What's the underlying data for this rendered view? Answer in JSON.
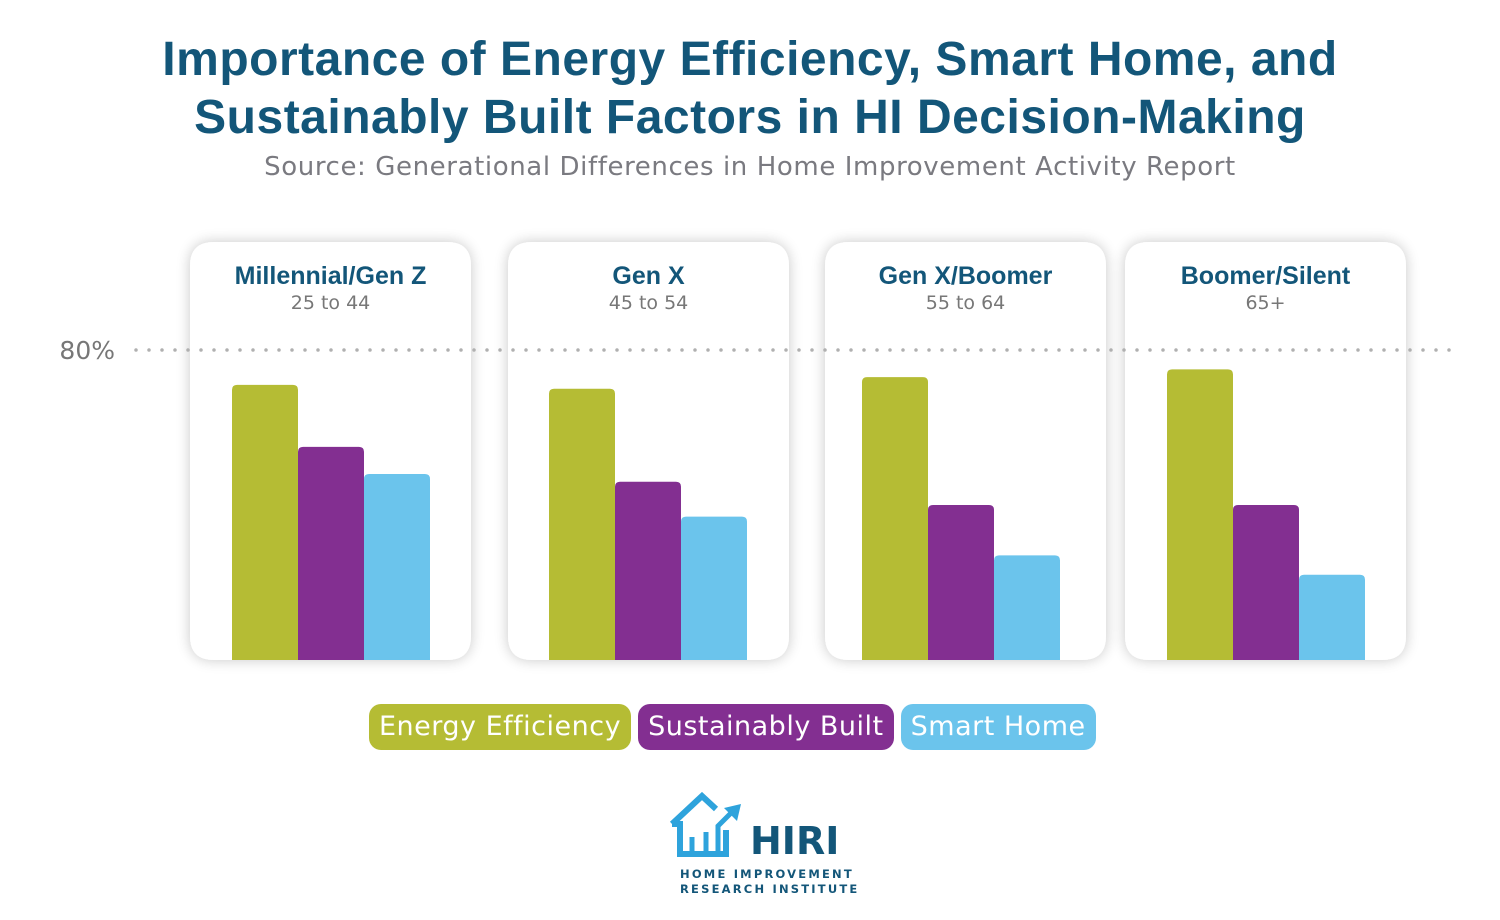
{
  "title_line1": "Importance of Energy Efficiency, Smart Home, and",
  "title_line2": "Sustainably Built Factors in HI Decision-Making",
  "subtitle": "Source: Generational Differences in Home Improvement Activity Report",
  "colors": {
    "title": "#135679",
    "energy_efficiency": "#b5bc34",
    "sustainably_built": "#832f91",
    "smart_home": "#6bc4ec",
    "reference_line": "#b0b0b0"
  },
  "chart_data": {
    "type": "bar",
    "title": "Importance of Energy Efficiency, Smart Home, and Sustainably Built Factors in HI Decision-Making",
    "categories": [
      {
        "name": "Millennial/Gen Z",
        "sub": "25 to 44"
      },
      {
        "name": "Gen X",
        "sub": "45 to 54"
      },
      {
        "name": "Gen X/Boomer",
        "sub": "55 to 64"
      },
      {
        "name": "Boomer/Silent",
        "sub": "65+"
      }
    ],
    "series": [
      {
        "name": "Energy Efficiency",
        "values": [
          71,
          70,
          73,
          75
        ]
      },
      {
        "name": "Sustainably Built",
        "values": [
          55,
          46,
          40,
          40
        ]
      },
      {
        "name": "Smart Home",
        "values": [
          48,
          37,
          27,
          22
        ]
      }
    ],
    "reference_line": {
      "value": 80,
      "label": "80%"
    },
    "ylim": [
      0,
      80
    ],
    "grid": false,
    "legend_placement": "bottom"
  },
  "logo": {
    "name": "HIRI",
    "line1": "HOME IMPROVEMENT",
    "line2": "RESEARCH INSTITUTE"
  }
}
